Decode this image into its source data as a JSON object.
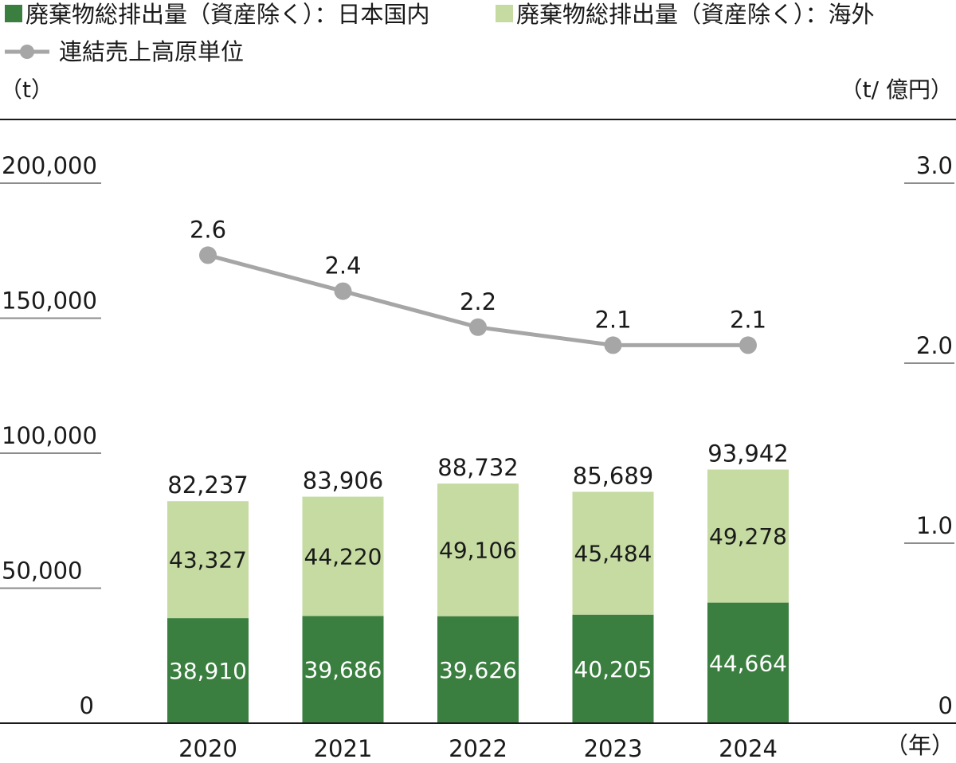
{
  "chart_data": {
    "type": "bar",
    "stacked": true,
    "categories": [
      "2020",
      "2021",
      "2022",
      "2023",
      "2024"
    ],
    "series": [
      {
        "name": "廃棄物総排出量（資産除く）：日本国内",
        "values": [
          38910,
          39686,
          39626,
          40205,
          44664
        ],
        "labels": [
          "38,910",
          "39,686",
          "39,626",
          "40,205",
          "44,664"
        ],
        "color": "#3a7f3f",
        "label_color": "#ffffff"
      },
      {
        "name": "廃棄物総排出量（資産除く）：海外",
        "values": [
          43327,
          44220,
          49106,
          45484,
          49278
        ],
        "labels": [
          "43,327",
          "44,220",
          "49,106",
          "45,484",
          "49,278"
        ],
        "color": "#c5dba1",
        "label_color": "#1a1a1a"
      }
    ],
    "totals": [
      82237,
      83906,
      88732,
      85689,
      93942
    ],
    "total_labels": [
      "82,237",
      "83,906",
      "88,732",
      "85,689",
      "93,942"
    ],
    "line_series": {
      "name": "連結売上高原単位",
      "values": [
        2.6,
        2.4,
        2.2,
        2.1,
        2.1
      ],
      "labels": [
        "2.6",
        "2.4",
        "2.2",
        "2.1",
        "2.1"
      ],
      "color": "#a6a6a6",
      "axis": "right"
    },
    "left_axis": {
      "unit": "（t）",
      "ylim": [
        0,
        200000
      ],
      "ticks": [
        0,
        50000,
        100000,
        150000,
        200000
      ],
      "tick_labels": [
        "0",
        "50,000",
        "100,000",
        "150,000",
        "200,000"
      ]
    },
    "right_axis": {
      "unit": "（t/ 億円）",
      "ylim": [
        0,
        3.0
      ],
      "ticks": [
        0,
        1.0,
        2.0,
        3.0
      ],
      "tick_labels": [
        "0",
        "1.0",
        "2.0",
        "3.0"
      ]
    },
    "x_unit": "（年）",
    "legend_position": "top-left"
  }
}
